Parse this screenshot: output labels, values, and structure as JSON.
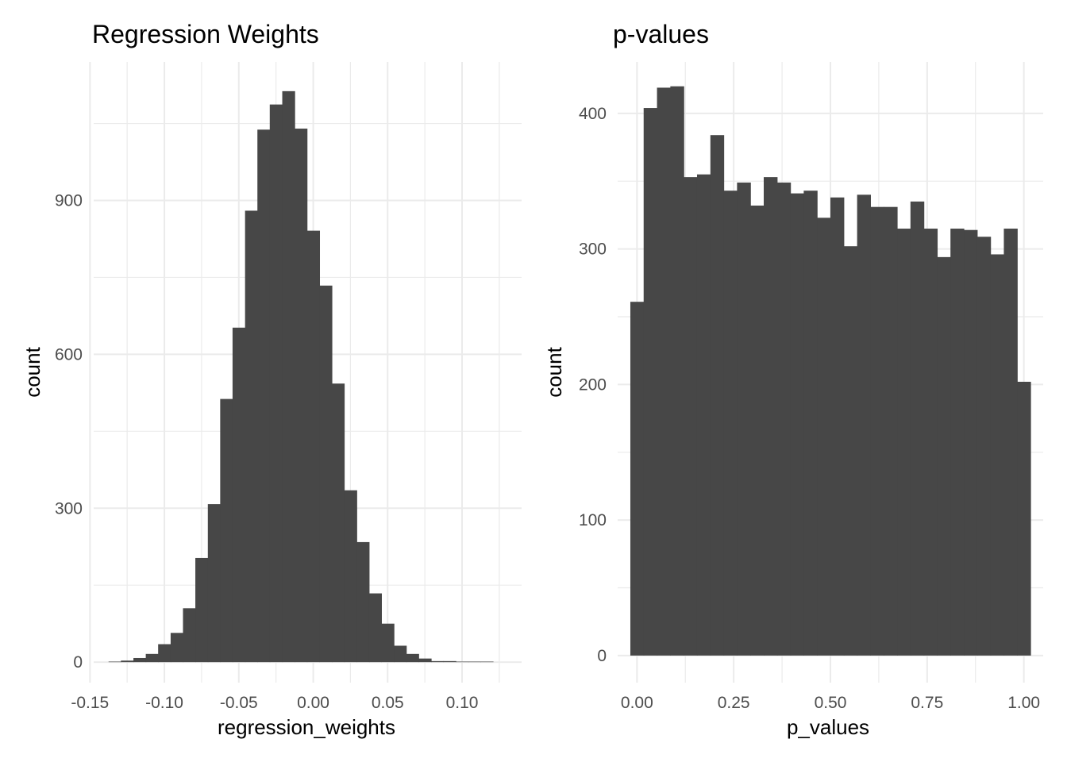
{
  "chart_data": [
    {
      "type": "bar",
      "title": "Regression Weights",
      "xlabel": "regression_weights",
      "ylabel": "count",
      "xlim": [
        -0.1475,
        0.14
      ],
      "ylim": [
        -40,
        1170
      ],
      "x_ticks": [
        -0.15,
        -0.1,
        -0.05,
        0.0,
        0.05,
        0.1
      ],
      "x_tick_labels": [
        "-0.15",
        "-0.10",
        "-0.05",
        "0.00",
        "0.05",
        "0.10"
      ],
      "y_ticks": [
        0,
        300,
        600,
        900
      ],
      "y_tick_labels": [
        "0",
        "300",
        "600",
        "900"
      ],
      "grid": true,
      "bin_edges": [
        -0.1375,
        -0.1292,
        -0.1208,
        -0.1125,
        -0.1042,
        -0.0958,
        -0.0875,
        -0.0792,
        -0.0708,
        -0.0625,
        -0.0542,
        -0.0458,
        -0.0375,
        -0.0292,
        -0.0208,
        -0.0125,
        -0.0042,
        0.0042,
        0.0125,
        0.0208,
        0.0292,
        0.0375,
        0.0458,
        0.0542,
        0.0625,
        0.0708,
        0.0792,
        0.0875,
        0.0958,
        0.1042,
        0.1125,
        0.1208,
        0.1292
      ],
      "values": [
        1,
        3,
        8,
        16,
        35,
        57,
        105,
        203,
        308,
        513,
        652,
        880,
        1038,
        1087,
        1113,
        1040,
        841,
        734,
        543,
        335,
        234,
        134,
        75,
        32,
        16,
        7,
        2,
        2,
        1,
        1,
        1,
        0
      ]
    },
    {
      "type": "bar",
      "title": "p-values",
      "xlabel": "p_values",
      "ylabel": "count",
      "xlim": [
        -0.05,
        1.05
      ],
      "ylim": [
        -20,
        438
      ],
      "x_ticks": [
        0.0,
        0.25,
        0.5,
        0.75,
        1.0
      ],
      "x_tick_labels": [
        "0.00",
        "0.25",
        "0.50",
        "0.75",
        "1.00"
      ],
      "y_ticks": [
        0,
        100,
        200,
        300,
        400
      ],
      "y_tick_labels": [
        "0",
        "100",
        "200",
        "300",
        "400"
      ],
      "grid": true,
      "bin_edges": [
        -0.0172,
        0.0172,
        0.0517,
        0.0862,
        0.1207,
        0.1552,
        0.1897,
        0.2241,
        0.2586,
        0.2931,
        0.3276,
        0.3621,
        0.3966,
        0.431,
        0.4655,
        0.5,
        0.5345,
        0.569,
        0.6034,
        0.6379,
        0.6724,
        0.7069,
        0.7414,
        0.7759,
        0.8103,
        0.8448,
        0.8793,
        0.9138,
        0.9483,
        0.9828,
        1.0172
      ],
      "values": [
        261,
        404,
        419,
        420,
        353,
        355,
        384,
        343,
        349,
        332,
        353,
        349,
        341,
        343,
        323,
        338,
        302,
        340,
        331,
        331,
        315,
        335,
        315,
        294,
        315,
        314,
        309,
        296,
        315,
        202
      ]
    }
  ]
}
